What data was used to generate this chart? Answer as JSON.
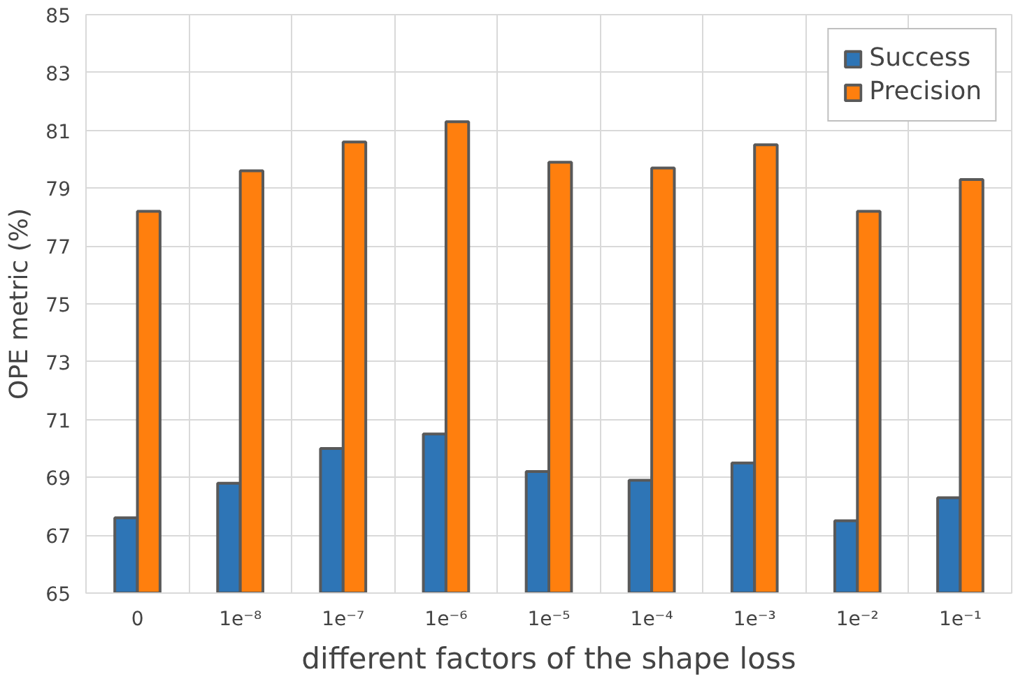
{
  "chart_data": {
    "type": "bar",
    "xlabel": "different factors of the shape loss",
    "ylabel": "OPE metric (%)",
    "categories": [
      "0",
      "1e⁻⁸",
      "1e⁻⁷",
      "1e⁻⁶",
      "1e⁻⁵",
      "1e⁻⁴",
      "1e⁻³",
      "1e⁻²",
      "1e⁻¹"
    ],
    "series": [
      {
        "name": "Success",
        "color": "#2e75b6",
        "values": [
          67.6,
          68.8,
          70.0,
          70.5,
          69.2,
          68.9,
          69.5,
          67.5,
          68.3
        ]
      },
      {
        "name": "Precision",
        "color": "#ff7f0e",
        "values": [
          78.2,
          79.6,
          80.6,
          81.3,
          79.9,
          79.7,
          80.5,
          78.2,
          79.3
        ]
      }
    ],
    "ylim": [
      65,
      85
    ],
    "yticks": [
      65,
      67,
      69,
      71,
      73,
      75,
      77,
      79,
      81,
      83,
      85
    ],
    "grid": true,
    "legend": "top right"
  }
}
